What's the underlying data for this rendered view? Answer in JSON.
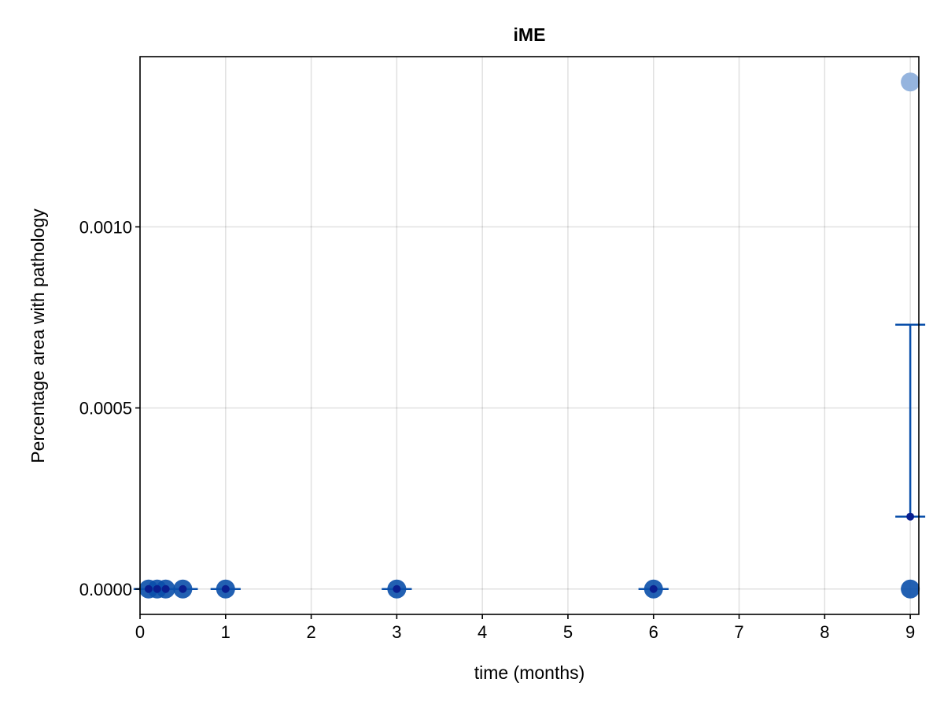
{
  "chart_data": {
    "type": "scatter",
    "title": "iME",
    "xlabel": "time (months)",
    "ylabel": "Percentage area with pathology",
    "xlim": [
      0,
      9.1
    ],
    "ylim": [
      -7e-05,
      0.00147
    ],
    "x_ticks": [
      0,
      1,
      2,
      3,
      4,
      5,
      6,
      7,
      8,
      9
    ],
    "x_tick_labels": [
      "0",
      "1",
      "2",
      "3",
      "4",
      "5",
      "6",
      "7",
      "8",
      "9"
    ],
    "y_ticks": [
      0,
      0.0005,
      0.001
    ],
    "y_tick_labels": [
      "0.0000",
      "0.0005",
      "0.0010"
    ],
    "grid": true,
    "colors": {
      "points": "#0a4faa",
      "outlier": "#8fb0dc",
      "mean_marker": "#0a1f8f",
      "error_bar": "#0a4faa"
    },
    "series": [
      {
        "points": [
          {
            "x": 0.1,
            "y": 0
          },
          {
            "x": 0.2,
            "y": 0
          },
          {
            "x": 0.3,
            "y": 0
          },
          {
            "x": 0.5,
            "y": 0
          },
          {
            "x": 1,
            "y": 0
          },
          {
            "x": 3,
            "y": 0
          },
          {
            "x": 6,
            "y": 0
          },
          {
            "x": 9,
            "y": 0
          },
          {
            "x": 9,
            "y": 0.0014
          }
        ]
      }
    ],
    "summary": [
      {
        "x": 0.1,
        "mean": 0,
        "lower": 0,
        "upper": 0
      },
      {
        "x": 0.2,
        "mean": 0,
        "lower": 0,
        "upper": 0
      },
      {
        "x": 0.3,
        "mean": 0,
        "lower": 0,
        "upper": 0
      },
      {
        "x": 0.5,
        "mean": 0,
        "lower": 0,
        "upper": 0
      },
      {
        "x": 1,
        "mean": 0,
        "lower": 0,
        "upper": 0
      },
      {
        "x": 3,
        "mean": 0,
        "lower": 0,
        "upper": 0
      },
      {
        "x": 6,
        "mean": 0,
        "lower": 0,
        "upper": 0
      },
      {
        "x": 9,
        "mean": 0.0002,
        "lower": 0.0002,
        "upper": 0.00073
      }
    ]
  }
}
